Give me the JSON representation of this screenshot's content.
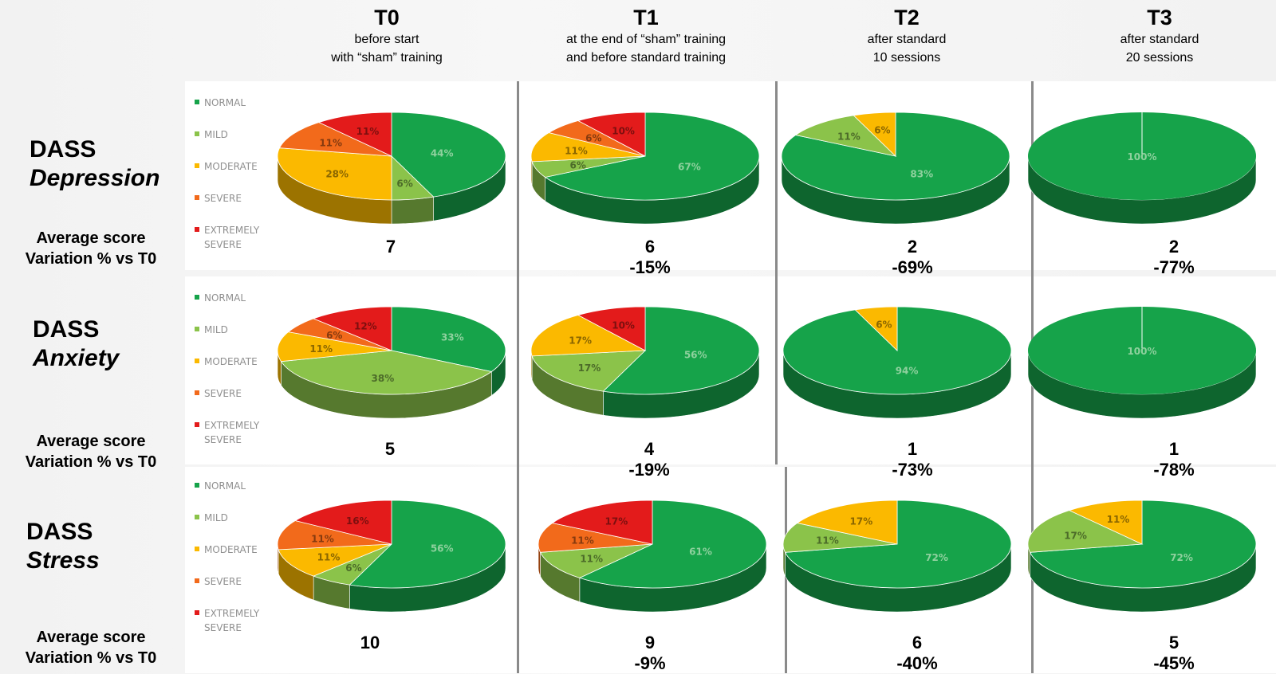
{
  "columns": [
    {
      "code": "T0",
      "desc": "before start\nwith “sham” training"
    },
    {
      "code": "T1",
      "desc": "at the end of “sham” training\nand before standard training"
    },
    {
      "code": "T2",
      "desc": "after standard\n10 sessions"
    },
    {
      "code": "T3",
      "desc": "after standard\n20 sessions"
    }
  ],
  "rows": [
    {
      "title": "DASS",
      "subtitle": "Depression"
    },
    {
      "title": "DASS",
      "subtitle": "Anxiety"
    },
    {
      "title": "DASS",
      "subtitle": "Stress"
    }
  ],
  "avg_label": "Average score\nVariation % vs T0",
  "legend": [
    {
      "label": "NORMAL",
      "color": "#16a34a"
    },
    {
      "label": "MILD",
      "color": "#8bc34a"
    },
    {
      "label": "MODERATE",
      "color": "#fbb900"
    },
    {
      "label": "SEVERE",
      "color": "#f26a1b"
    },
    {
      "label": "EXTREMELY\nSEVERE",
      "color": "#e31b1b"
    }
  ],
  "colors": {
    "normal": "#16a34a",
    "mild": "#8bc34a",
    "moderate": "#fbb900",
    "severe": "#f26a1b",
    "extremely_severe": "#e31b1b"
  },
  "chart_data": [
    {
      "type": "pie",
      "scale": "DASS Depression",
      "time": "T0",
      "categories": [
        "NORMAL",
        "MILD",
        "MODERATE",
        "SEVERE",
        "EXTREMELY SEVERE"
      ],
      "values": [
        44,
        6,
        28,
        11,
        11
      ],
      "value_labels": [
        "44%",
        "6%",
        "28%",
        "11%",
        "11%"
      ],
      "avg_score": "7",
      "variation": ""
    },
    {
      "type": "pie",
      "scale": "DASS Depression",
      "time": "T1",
      "categories": [
        "NORMAL",
        "MILD",
        "MODERATE",
        "SEVERE",
        "EXTREMELY SEVERE"
      ],
      "values": [
        67,
        6,
        11,
        6,
        10
      ],
      "value_labels": [
        "67%",
        "6%",
        "11%",
        "6%",
        "10%"
      ],
      "avg_score": "6",
      "variation": "-15%"
    },
    {
      "type": "pie",
      "scale": "DASS Depression",
      "time": "T2",
      "categories": [
        "NORMAL",
        "MILD",
        "MODERATE"
      ],
      "values": [
        83,
        11,
        6
      ],
      "value_labels": [
        "83%",
        "11%",
        "6%"
      ],
      "avg_score": "2",
      "variation": "-69%"
    },
    {
      "type": "pie",
      "scale": "DASS Depression",
      "time": "T3",
      "categories": [
        "NORMAL"
      ],
      "values": [
        100
      ],
      "value_labels": [
        "100%"
      ],
      "avg_score": "2",
      "variation": "-77%"
    },
    {
      "type": "pie",
      "scale": "DASS Anxiety",
      "time": "T0",
      "categories": [
        "NORMAL",
        "MILD",
        "MODERATE",
        "SEVERE",
        "EXTREMELY SEVERE"
      ],
      "values": [
        33,
        38,
        11,
        6,
        12
      ],
      "value_labels": [
        "33%",
        "38%",
        "11%",
        "6%",
        "12%"
      ],
      "avg_score": "5",
      "variation": ""
    },
    {
      "type": "pie",
      "scale": "DASS Anxiety",
      "time": "T1",
      "categories": [
        "NORMAL",
        "MILD",
        "MODERATE",
        "EXTREMELY SEVERE"
      ],
      "values": [
        56,
        17,
        17,
        10
      ],
      "value_labels": [
        "56%",
        "17%",
        "17%",
        "10%"
      ],
      "avg_score": "4",
      "variation": "-19%"
    },
    {
      "type": "pie",
      "scale": "DASS Anxiety",
      "time": "T2",
      "categories": [
        "NORMAL",
        "MODERATE"
      ],
      "values": [
        94,
        6
      ],
      "value_labels": [
        "94%",
        "6%"
      ],
      "avg_score": "1",
      "variation": "-73%"
    },
    {
      "type": "pie",
      "scale": "DASS Anxiety",
      "time": "T3",
      "categories": [
        "NORMAL"
      ],
      "values": [
        100
      ],
      "value_labels": [
        "100%"
      ],
      "avg_score": "1",
      "variation": "-78%"
    },
    {
      "type": "pie",
      "scale": "DASS Stress",
      "time": "T0",
      "categories": [
        "NORMAL",
        "MILD",
        "MODERATE",
        "SEVERE",
        "EXTREMELY SEVERE"
      ],
      "values": [
        56,
        6,
        11,
        11,
        16
      ],
      "value_labels": [
        "56%",
        "6%",
        "11%",
        "11%",
        "16%"
      ],
      "avg_score": "10",
      "variation": ""
    },
    {
      "type": "pie",
      "scale": "DASS Stress",
      "time": "T1",
      "categories": [
        "NORMAL",
        "MILD",
        "SEVERE",
        "EXTREMELY SEVERE"
      ],
      "values": [
        61,
        11,
        11,
        17
      ],
      "value_labels": [
        "61%",
        "11%",
        "11%",
        "17%"
      ],
      "avg_score": "9",
      "variation": "-9%"
    },
    {
      "type": "pie",
      "scale": "DASS Stress",
      "time": "T2",
      "categories": [
        "NORMAL",
        "MILD",
        "MODERATE"
      ],
      "values": [
        72,
        11,
        17
      ],
      "value_labels": [
        "72%",
        "11%",
        "17%"
      ],
      "avg_score": "6",
      "variation": "-40%"
    },
    {
      "type": "pie",
      "scale": "DASS Stress",
      "time": "T3",
      "categories": [
        "NORMAL",
        "MILD",
        "MODERATE"
      ],
      "values": [
        72,
        17,
        11
      ],
      "value_labels": [
        "72%",
        "17%",
        "11%"
      ],
      "avg_score": "5",
      "variation": "-45%"
    }
  ]
}
